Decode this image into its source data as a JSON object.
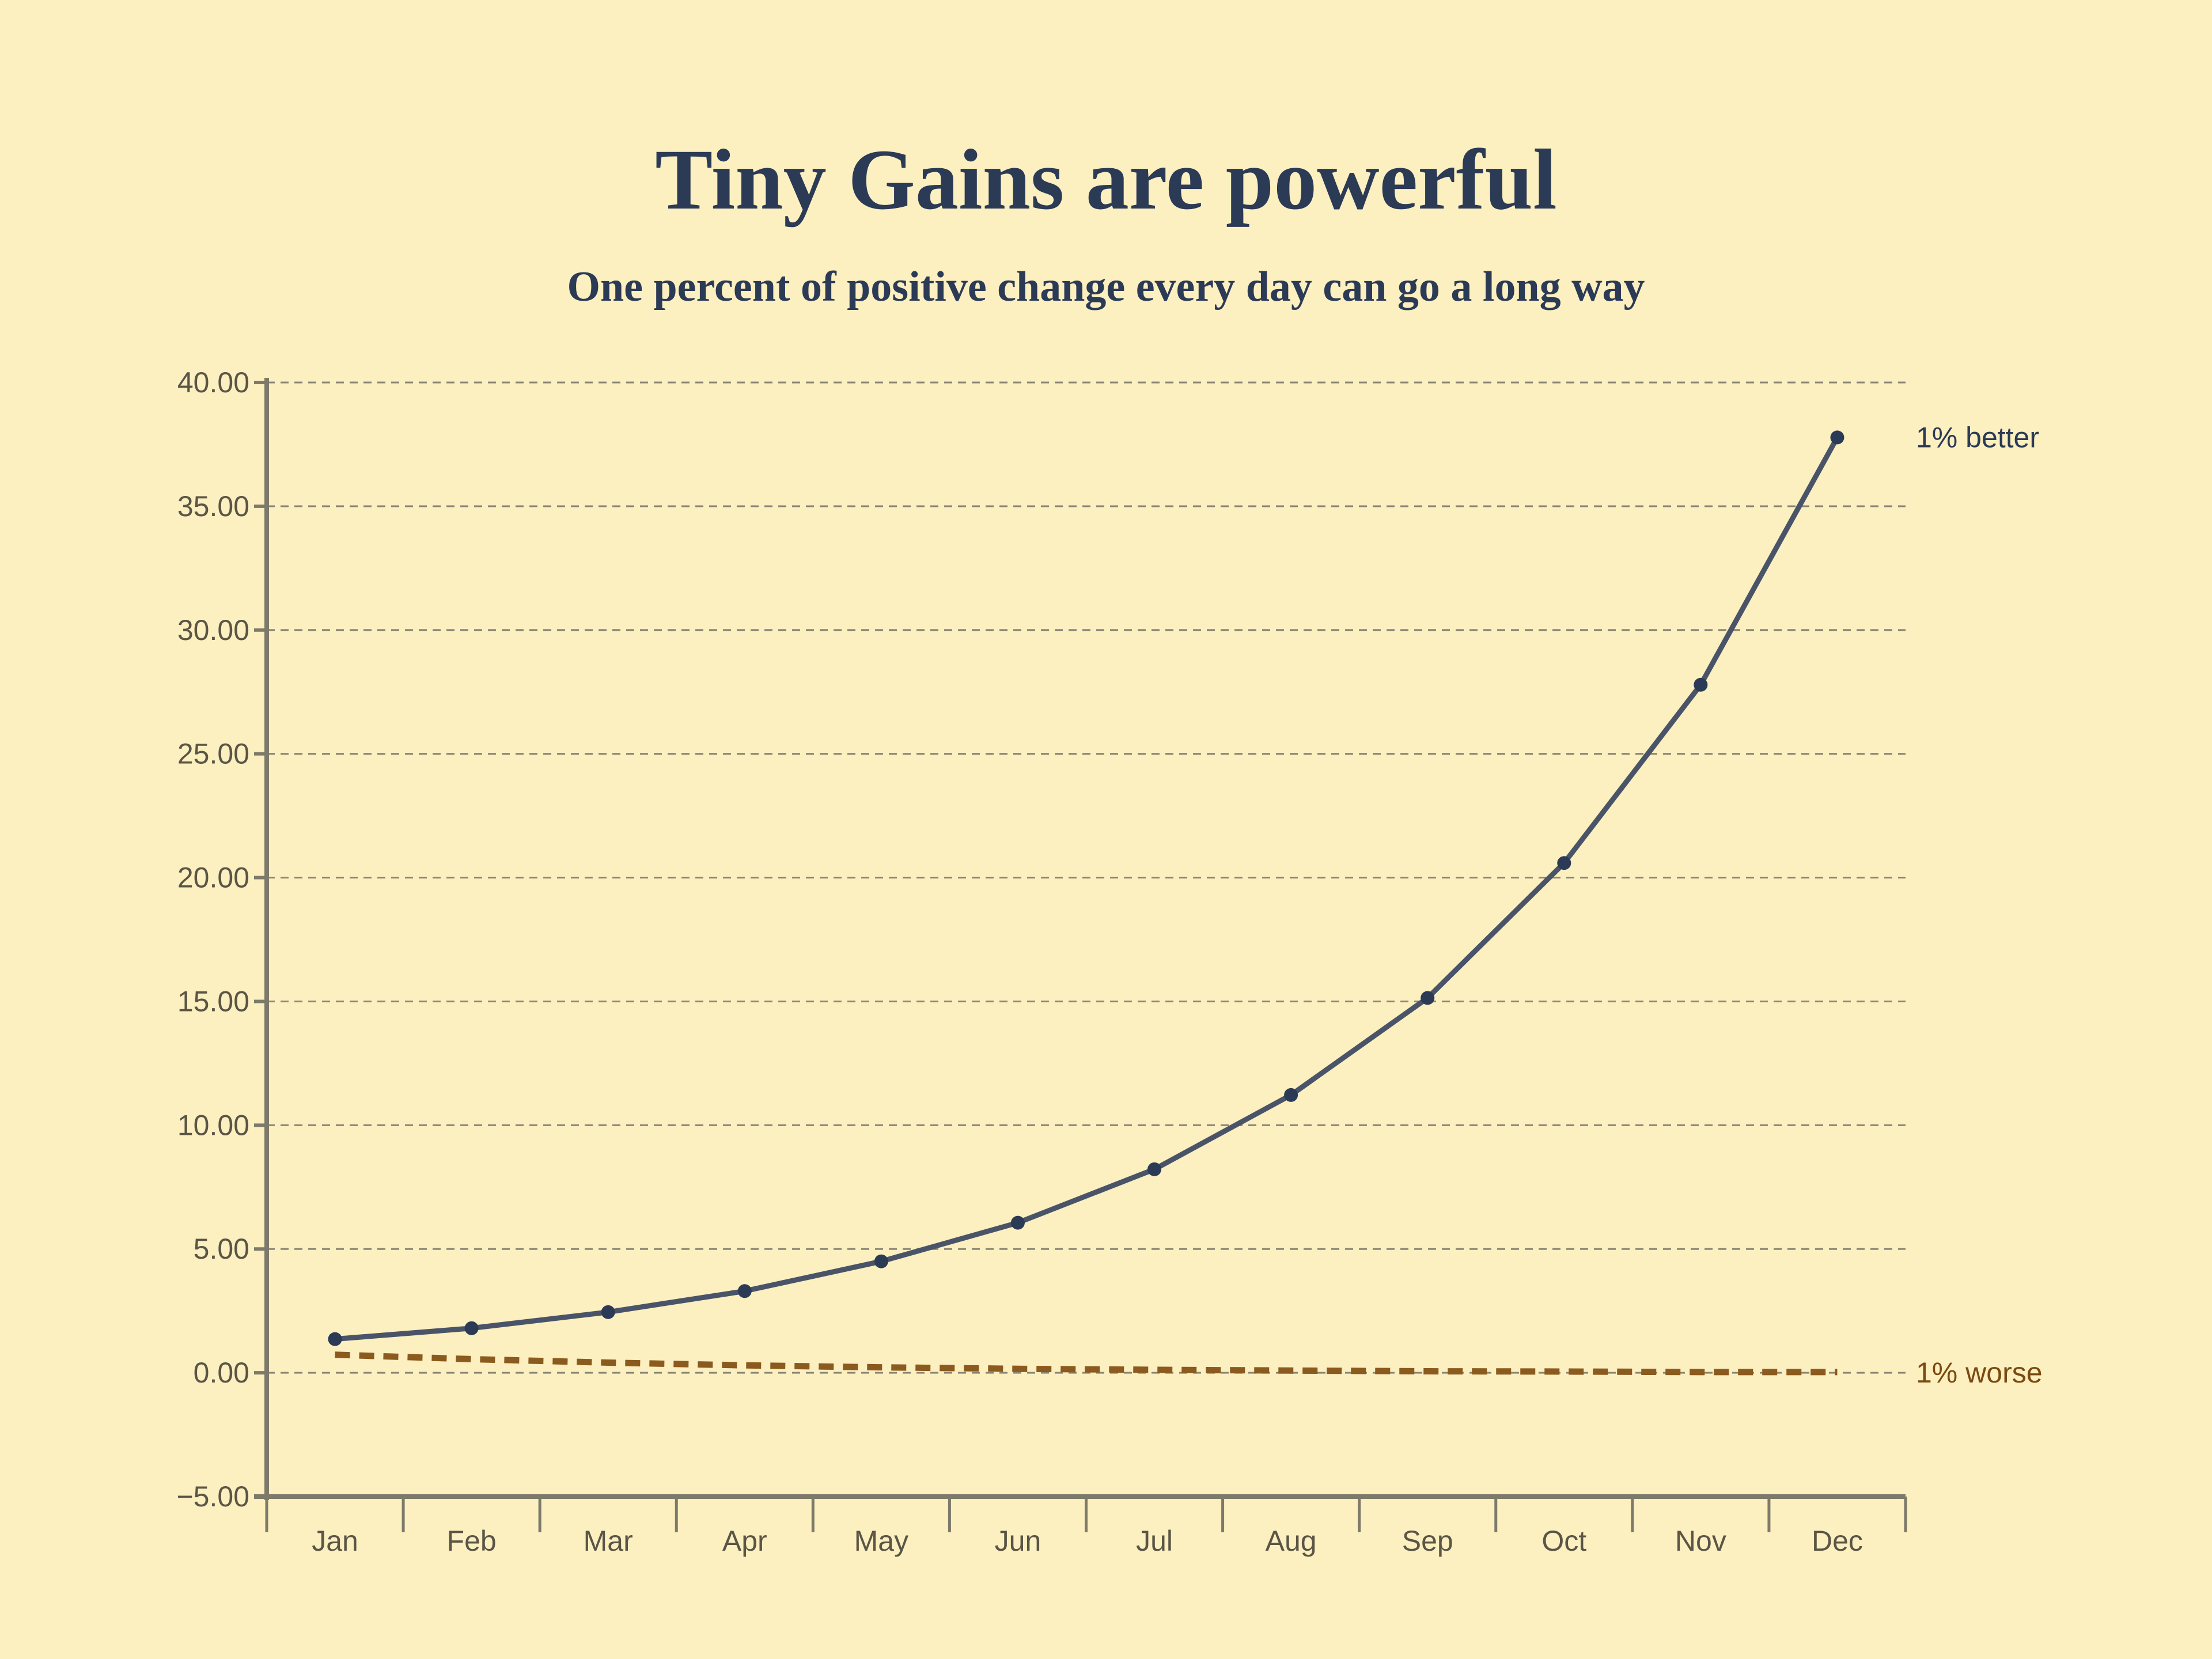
{
  "chart_data": {
    "type": "line",
    "title": "Tiny Gains are powerful",
    "subtitle": "One percent of positive change every day can go a long way",
    "xlabel": "",
    "ylabel": "",
    "categories": [
      "Jan",
      "Feb",
      "Mar",
      "Apr",
      "May",
      "Jun",
      "Jul",
      "Aug",
      "Sep",
      "Oct",
      "Nov",
      "Dec"
    ],
    "ylim": [
      -5,
      40
    ],
    "yticks": [
      "−5.00",
      "0.00",
      "5.00",
      "10.00",
      "15.00",
      "20.00",
      "25.00",
      "30.00",
      "35.00",
      "40.00"
    ],
    "ytick_values": [
      -5,
      0,
      5,
      10,
      15,
      20,
      25,
      30,
      35,
      40
    ],
    "grid": "horizontal dashed",
    "legend": "end-of-line labels, right",
    "series": [
      {
        "name": "1% better",
        "style": "solid with markers",
        "color": "#4a5468",
        "marker_color": "#2b3a55",
        "label_color": "#2b3a55",
        "values": [
          1.36,
          1.8,
          2.45,
          3.3,
          4.5,
          6.06,
          8.22,
          11.22,
          15.14,
          20.59,
          27.79,
          37.78
        ]
      },
      {
        "name": "1% worse",
        "style": "dashed",
        "color": "#8b5a1e",
        "label_color": "#7a4a10",
        "values": [
          0.73,
          0.55,
          0.41,
          0.3,
          0.22,
          0.16,
          0.12,
          0.09,
          0.06,
          0.05,
          0.03,
          0.03
        ]
      }
    ],
    "colors": {
      "background": "#fcefc0",
      "title": "#2b3a55",
      "axis": "#7d7a6a",
      "grid": "#8a8676"
    }
  }
}
